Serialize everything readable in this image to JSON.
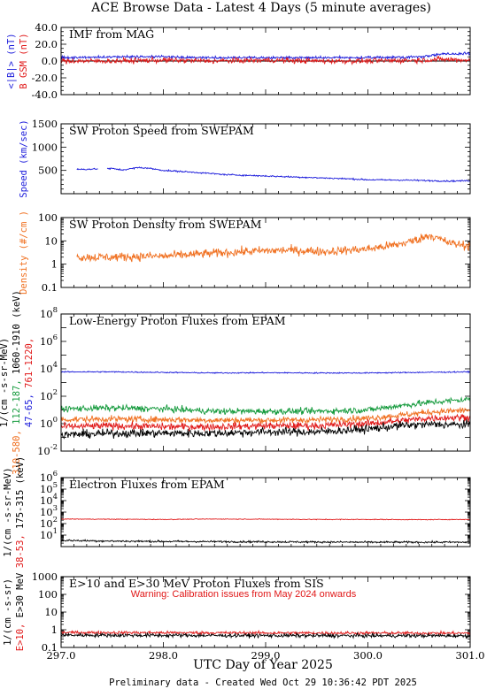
{
  "figure": {
    "title": "ACE Browse Data - Latest 4 Days (5 minute averages)",
    "xlabel": "UTC Day of Year 2025",
    "footer": "Preliminary data - Created Wed Oct 29 10:36:42 PDT 2025",
    "xlim": [
      297.0,
      301.0
    ],
    "xticks": [
      "297.0",
      "298.0",
      "299.0",
      "300.0",
      "301.0"
    ]
  },
  "colors": {
    "black": "#000000",
    "blue": "#1a1adb",
    "red": "#e01818",
    "orange": "#f07020",
    "green": "#149a3c"
  },
  "chart_data": [
    {
      "type": "line",
      "title": "IMF from MAG",
      "ylabel_parts": [
        {
          "text": "<|B|> (nT)",
          "color": "#1a1adb"
        },
        {
          "text": "B  GSM (nT)",
          "color": "#e01818"
        }
      ],
      "ylim": [
        -40,
        40
      ],
      "scale": "linear",
      "yticks": [
        "-40.0",
        "-20.0",
        "0.0",
        "20.0",
        "40.0"
      ],
      "zero_line": true,
      "series": [
        {
          "color": "#1a1adb",
          "x": [
            297.0,
            297.5,
            298.0,
            298.5,
            299.0,
            299.5,
            300.0,
            300.5,
            300.7,
            301.0
          ],
          "y": [
            4,
            5,
            5,
            4,
            4,
            4,
            4,
            5,
            8,
            9
          ],
          "noise": 1.5,
          "logNoise": false
        },
        {
          "color": "#e01818",
          "x": [
            297.0,
            297.5,
            298.0,
            298.5,
            299.0,
            299.5,
            300.0,
            300.5,
            300.7,
            301.0
          ],
          "y": [
            0,
            0,
            1,
            0,
            1,
            0,
            0,
            1,
            2,
            1
          ],
          "noise": 3,
          "logNoise": false
        }
      ]
    },
    {
      "type": "line",
      "title": "SW Proton Speed from SWEPAM",
      "ylabel_parts": [
        {
          "text": "Speed (km/sec)",
          "color": "#1a1adb"
        }
      ],
      "ylim": [
        0,
        1500
      ],
      "scale": "linear",
      "yticks": [
        "500",
        "1000",
        "1500"
      ],
      "series": [
        {
          "color": "#1a1adb",
          "x": [
            297.15,
            297.5,
            297.6,
            297.75,
            297.85,
            298.0,
            298.3,
            298.6,
            299.0,
            299.4,
            299.8,
            300.0,
            300.4,
            300.8,
            301.0
          ],
          "y": [
            520,
            540,
            510,
            560,
            550,
            500,
            460,
            410,
            380,
            350,
            320,
            300,
            290,
            270,
            280
          ],
          "noise": 15,
          "logNoise": false,
          "gap": [
            297.36,
            297.45
          ]
        }
      ]
    },
    {
      "type": "line",
      "title": "SW Proton Density from SWEPAM",
      "ylabel_parts": [
        {
          "text": "Density (#/cm )",
          "color": "#f07020"
        }
      ],
      "ylim": [
        0.1,
        100
      ],
      "scale": "log",
      "yticks": [
        "0.1",
        "1",
        "10",
        "100"
      ],
      "series": [
        {
          "color": "#f07020",
          "x": [
            297.15,
            297.5,
            297.85,
            298.0,
            298.4,
            298.8,
            299.2,
            299.6,
            300.0,
            300.3,
            300.5,
            300.6,
            300.8,
            301.0
          ],
          "y": [
            2,
            2,
            2.2,
            2.2,
            2.8,
            3.5,
            4,
            3.5,
            4.5,
            7,
            12,
            18,
            8,
            6
          ],
          "noise": 0.18,
          "logNoise": true
        }
      ]
    },
    {
      "type": "line",
      "title": "Low-Energy Proton Fluxes from EPAM",
      "ylabel_parts": [
        {
          "text": "47-65, ",
          "color": "#1a1adb"
        },
        {
          "text": "761-1220, ",
          "color": "#e01818"
        },
        {
          "text": "112-187, ",
          "color": "#149a3c"
        },
        {
          "text": "1060-1910 (keV)",
          "color": "#000000"
        },
        {
          "text": "310-580, ",
          "color": "#f07020"
        },
        {
          "text": "1/(cm -s-sr-MeV)",
          "color": "#000000"
        }
      ],
      "ylim": [
        0.01,
        100000000
      ],
      "scale": "log",
      "yticks": [
        "10-2",
        "10^0",
        "10^2",
        "10^4",
        "10^6",
        "10^8"
      ],
      "series": [
        {
          "color": "#1a1adb",
          "x": [
            297.0,
            297.5,
            298.0,
            298.5,
            299.0,
            299.5,
            300.0,
            300.5,
            301.0
          ],
          "y": [
            6000,
            6000,
            5500,
            5000,
            5200,
            5000,
            5000,
            5500,
            6000
          ],
          "noise": 0.04,
          "logNoise": true
        },
        {
          "color": "#149a3c",
          "x": [
            297.0,
            297.5,
            298.0,
            298.5,
            299.0,
            299.5,
            300.0,
            300.3,
            300.6,
            301.0
          ],
          "y": [
            12,
            14,
            12,
            8,
            8,
            8,
            10,
            20,
            35,
            60
          ],
          "noise": 0.22,
          "logNoise": true
        },
        {
          "color": "#f07020",
          "x": [
            297.0,
            297.5,
            298.0,
            298.5,
            299.0,
            299.5,
            300.0,
            300.3,
            300.6,
            301.0
          ],
          "y": [
            2,
            2.2,
            2,
            1.8,
            1.8,
            1.9,
            2.5,
            4,
            7,
            10
          ],
          "noise": 0.22,
          "logNoise": true
        },
        {
          "color": "#e01818",
          "x": [
            297.0,
            297.5,
            298.0,
            298.5,
            299.0,
            299.5,
            300.0,
            300.3,
            300.6,
            301.0
          ],
          "y": [
            0.6,
            0.7,
            0.6,
            0.6,
            0.7,
            0.7,
            1,
            1.6,
            2.5,
            3
          ],
          "noise": 0.25,
          "logNoise": true
        },
        {
          "color": "#000000",
          "x": [
            297.0,
            297.5,
            298.0,
            298.5,
            299.0,
            299.5,
            300.0,
            300.3,
            300.6,
            301.0
          ],
          "y": [
            0.15,
            0.2,
            0.2,
            0.2,
            0.25,
            0.25,
            0.4,
            0.7,
            0.9,
            0.8
          ],
          "noise": 0.28,
          "logNoise": true
        }
      ]
    },
    {
      "type": "line",
      "title": "Electron Fluxes from EPAM",
      "ylabel_parts": [
        {
          "text": "38-53, ",
          "color": "#e01818"
        },
        {
          "text": "175-315 (keV)",
          "color": "#000000"
        },
        {
          "text": "1/(cm -s-sr-MeV)",
          "color": "#000000"
        }
      ],
      "ylim": [
        10,
        10000000
      ],
      "scale": "log",
      "yticks": [
        "10^1",
        "10^2",
        "10^3",
        "10^4",
        "10^5",
        "10^6"
      ],
      "series": [
        {
          "color": "#e01818",
          "x": [
            297.0,
            297.5,
            298.0,
            298.5,
            299.0,
            299.5,
            300.0,
            300.5,
            301.0
          ],
          "y": [
            2500,
            2400,
            2300,
            2500,
            2400,
            2300,
            2300,
            2200,
            2300
          ],
          "noise": 0.03,
          "logNoise": true
        },
        {
          "color": "#000000",
          "x": [
            297.0,
            297.5,
            298.0,
            298.5,
            299.0,
            299.5,
            300.0,
            300.5,
            301.0
          ],
          "y": [
            35,
            30,
            28,
            27,
            26,
            25,
            24,
            24,
            24
          ],
          "noise": 0.08,
          "logNoise": true
        }
      ]
    },
    {
      "type": "line",
      "title": "E>10 and E>30 MeV Proton Fluxes from SIS",
      "ylabel_parts": [
        {
          "text": "E>10, ",
          "color": "#e01818"
        },
        {
          "text": "E>30 MeV",
          "color": "#000000"
        },
        {
          "text": "1/(cm -s-sr)",
          "color": "#000000"
        }
      ],
      "ylim": [
        0.1,
        1000
      ],
      "scale": "log",
      "yticks": [
        "0.1",
        "1",
        "10",
        "100",
        "1000"
      ],
      "annotation": {
        "text": "Warning: Calibration issues from May 2024 onwards",
        "color": "#e01818"
      },
      "series": [
        {
          "color": "#e01818",
          "x": [
            297.0,
            298.0,
            299.0,
            300.0,
            301.0
          ],
          "y": [
            0.7,
            0.68,
            0.66,
            0.65,
            0.64
          ],
          "noise": 0.08,
          "logNoise": true
        },
        {
          "color": "#000000",
          "x": [
            297.0,
            298.0,
            299.0,
            300.0,
            301.0
          ],
          "y": [
            0.5,
            0.48,
            0.47,
            0.46,
            0.46
          ],
          "noise": 0.1,
          "logNoise": true
        }
      ]
    }
  ]
}
